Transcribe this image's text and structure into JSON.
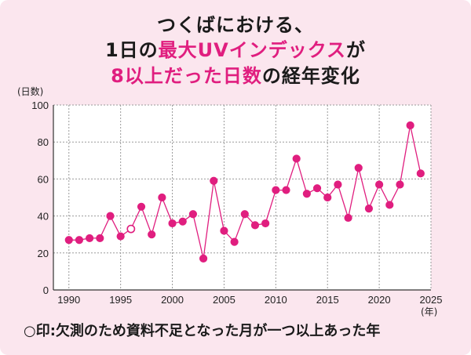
{
  "title": {
    "line1": "つくばにおける、",
    "line2_pre": "1日の",
    "line2_hl": "最大UVインデックス",
    "line2_post": "が",
    "line3_hl": "8以上だった日数",
    "line3_post": "の経年変化"
  },
  "note": "○印:欠測のため資料不足となった月が一つ以上あった年",
  "chart_data": {
    "type": "line",
    "ylabel": "(日数)",
    "xlabel": "(年)",
    "ylim": [
      0,
      100
    ],
    "xlim": [
      1988.5,
      2025
    ],
    "yticks": [
      0,
      20,
      40,
      60,
      80,
      100
    ],
    "xticks": [
      1990,
      1995,
      2000,
      2005,
      2010,
      2015,
      2020,
      2025
    ],
    "grid": true,
    "color": "#e01e7f",
    "series": [
      {
        "x": [
          1990,
          1991,
          1992,
          1993,
          1994,
          1995,
          1996,
          1997,
          1998,
          1999,
          2000,
          2001,
          2002,
          2003,
          2004,
          2005,
          2006,
          2007,
          2008,
          2009,
          2010,
          2011,
          2012,
          2013,
          2014,
          2015,
          2016,
          2017,
          2018,
          2019,
          2020,
          2021,
          2022,
          2023,
          2024
        ],
        "values": [
          27,
          27,
          28,
          28,
          40,
          29,
          33,
          45,
          30,
          50,
          36,
          37,
          41,
          17,
          59,
          32,
          26,
          41,
          35,
          36,
          54,
          54,
          71,
          52,
          55,
          50,
          57,
          39,
          66,
          44,
          57,
          46,
          57,
          89,
          63
        ],
        "hollow": [
          1996
        ]
      }
    ]
  }
}
